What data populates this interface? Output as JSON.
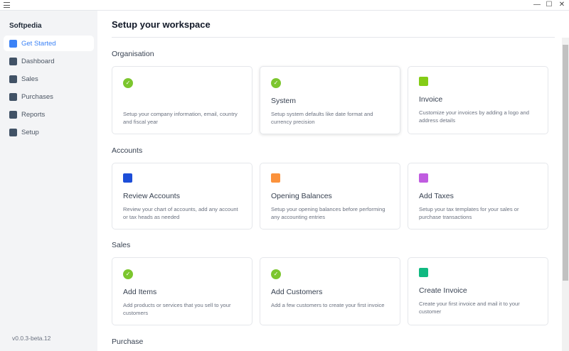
{
  "window": {
    "minimize": "—",
    "maximize": "☐",
    "close": "✕"
  },
  "sidebar": {
    "brand": "Softpedia",
    "version": "v0.0.3-beta.12",
    "items": [
      {
        "label": "Get Started",
        "icon": "tools-icon",
        "active": true
      },
      {
        "label": "Dashboard",
        "icon": "dashboard-icon"
      },
      {
        "label": "Sales",
        "icon": "sales-icon"
      },
      {
        "label": "Purchases",
        "icon": "purchases-icon"
      },
      {
        "label": "Reports",
        "icon": "reports-icon"
      },
      {
        "label": "Setup",
        "icon": "setup-icon"
      }
    ]
  },
  "main": {
    "title": "Setup your workspace",
    "sections": [
      {
        "label": "Organisation",
        "cards": [
          {
            "title": "",
            "desc": "Setup your company information, email, country and fiscal year",
            "icon": "check-icon",
            "done": true
          },
          {
            "title": "System",
            "desc": "Setup system defaults like date format and currency precision",
            "icon": "check-icon",
            "done": true
          },
          {
            "title": "Invoice",
            "desc": "Customize your invoices by adding a logo and address details",
            "icon": "invoice-icon",
            "color": "#84cc16"
          }
        ]
      },
      {
        "label": "Accounts",
        "cards": [
          {
            "title": "Review Accounts",
            "desc": "Review your chart of accounts, add any account or tax heads as needed",
            "icon": "search-icon",
            "color": "#1d4ed8"
          },
          {
            "title": "Opening Balances",
            "desc": "Setup your opening balances before performing any accounting entries",
            "icon": "wallet-icon",
            "color": "#fb923c"
          },
          {
            "title": "Add Taxes",
            "desc": "Setup your tax templates for your sales or purchase transactions",
            "icon": "percent-icon",
            "color": "#c05ce0"
          }
        ]
      },
      {
        "label": "Sales",
        "cards": [
          {
            "title": "Add Items",
            "desc": "Add products or services that you sell to your customers",
            "icon": "check-icon",
            "done": true
          },
          {
            "title": "Add Customers",
            "desc": "Add a few customers to create your first invoice",
            "icon": "check-icon",
            "done": true
          },
          {
            "title": "Create Invoice",
            "desc": "Create your first invoice and mail it to your customer",
            "icon": "receipt-icon",
            "color": "#10b981"
          }
        ]
      },
      {
        "label": "Purchase",
        "cards": []
      }
    ]
  }
}
